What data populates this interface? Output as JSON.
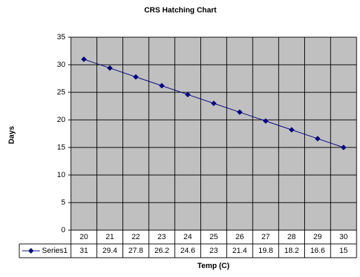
{
  "chart_data": {
    "type": "line",
    "title": "CRS Hatching Chart",
    "x_label": "Temp (C)",
    "y_label": "Days",
    "categories": [
      "20",
      "21",
      "22",
      "23",
      "24",
      "25",
      "26",
      "27",
      "28",
      "29",
      "30"
    ],
    "series": [
      {
        "name": "Series1",
        "color": "#000080",
        "values": [
          31,
          29.4,
          27.8,
          26.2,
          24.6,
          23,
          21.4,
          19.8,
          18.2,
          16.6,
          15
        ]
      }
    ],
    "ylim": [
      0,
      35
    ],
    "yticks": [
      0,
      5,
      10,
      15,
      20,
      25,
      30,
      35
    ],
    "grid": true
  }
}
